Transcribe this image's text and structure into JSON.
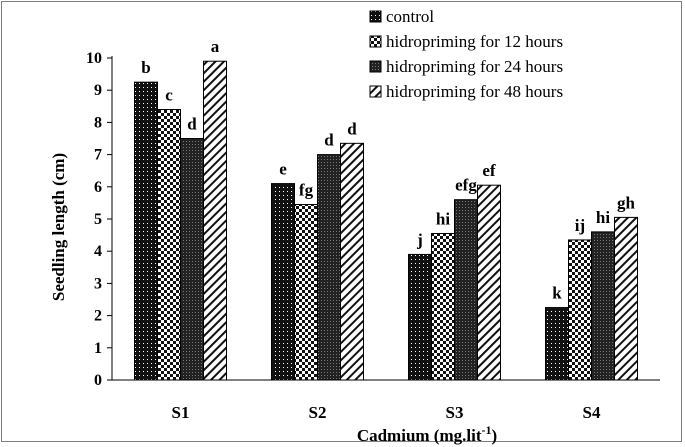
{
  "chart_data": {
    "type": "bar",
    "xlabel": "Cadmium (mg.lit",
    "xlabel_sup": "-1",
    "xlabel_end": ")",
    "ylabel": "Seedling length (cm)",
    "ylim": [
      0,
      10
    ],
    "yticks": [
      "0",
      "1",
      "2",
      "3",
      "4",
      "5",
      "6",
      "7",
      "8",
      "9",
      "10"
    ],
    "grid": false,
    "legend_position": "top-right",
    "categories": [
      "S1",
      "S2",
      "S3",
      "S4"
    ],
    "series": [
      {
        "name": "control",
        "pattern": "dots-dark",
        "values": [
          9.25,
          6.1,
          3.9,
          2.25
        ],
        "letters": [
          "b",
          "e",
          "j",
          "k"
        ]
      },
      {
        "name": "hidropriming for 12 hours",
        "pattern": "checker",
        "values": [
          8.4,
          5.45,
          4.55,
          4.35
        ],
        "letters": [
          "c",
          "fg",
          "hi",
          "ij"
        ]
      },
      {
        "name": "hidropriming for 24 hours",
        "pattern": "dots-dense",
        "values": [
          7.5,
          7.0,
          5.6,
          4.6
        ],
        "letters": [
          "d",
          "d",
          "efg",
          "hi"
        ]
      },
      {
        "name": "hidropriming for 48 hours",
        "pattern": "diagonal",
        "values": [
          9.9,
          7.35,
          6.05,
          5.05
        ],
        "letters": [
          "a",
          "d",
          "ef",
          "gh"
        ]
      }
    ]
  }
}
